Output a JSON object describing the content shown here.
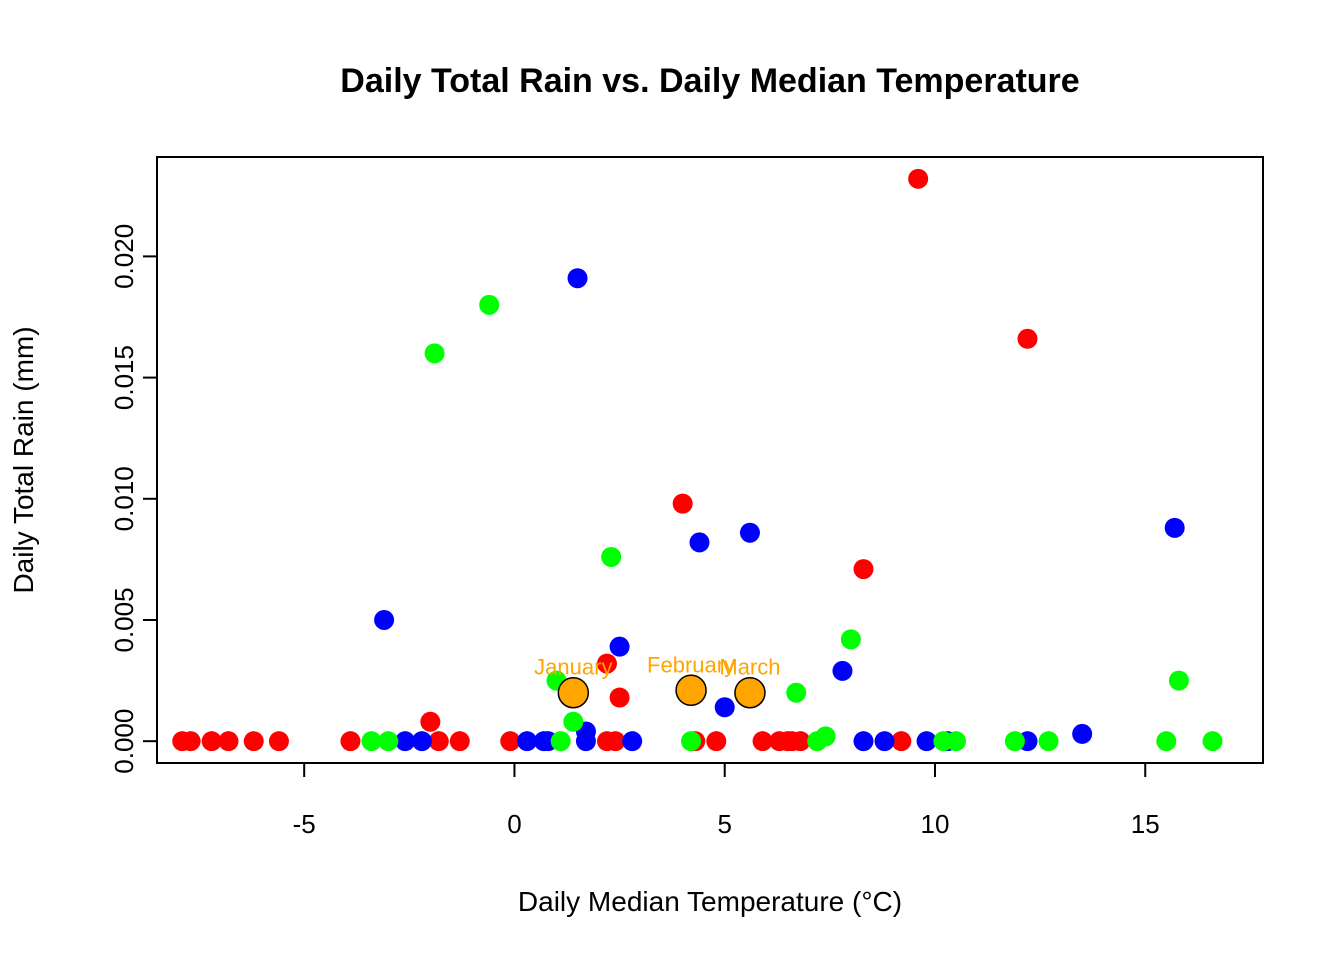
{
  "chart_data": {
    "type": "scatter",
    "title": "Daily Total Rain vs. Daily Median Temperature",
    "xlabel": "Daily Median Temperature (°C)",
    "ylabel": "Daily Total Rain (mm)",
    "xlim": [
      -8.5,
      17.8
    ],
    "ylim": [
      -0.0009,
      0.0241
    ],
    "x_ticks": [
      {
        "value": -5,
        "label": "-5"
      },
      {
        "value": 0,
        "label": "0"
      },
      {
        "value": 5,
        "label": "5"
      },
      {
        "value": 10,
        "label": "10"
      },
      {
        "value": 15,
        "label": "15"
      }
    ],
    "y_ticks": [
      {
        "value": 0.0,
        "label": "0.000"
      },
      {
        "value": 0.005,
        "label": "0.005"
      },
      {
        "value": 0.01,
        "label": "0.010"
      },
      {
        "value": 0.015,
        "label": "0.015"
      },
      {
        "value": 0.02,
        "label": "0.020"
      }
    ],
    "grid": false,
    "series": [
      {
        "color": "#ff0000",
        "points": [
          {
            "x": -7.9,
            "y": 0.0
          },
          {
            "x": -7.7,
            "y": 0.0
          },
          {
            "x": -7.2,
            "y": 0.0
          },
          {
            "x": -6.8,
            "y": 0.0
          },
          {
            "x": -6.2,
            "y": 0.0
          },
          {
            "x": -5.6,
            "y": 0.0
          },
          {
            "x": -3.9,
            "y": 0.0
          },
          {
            "x": -2.0,
            "y": 0.0008
          },
          {
            "x": -1.8,
            "y": 0.0
          },
          {
            "x": -1.3,
            "y": 0.0
          },
          {
            "x": -0.1,
            "y": 0.0
          },
          {
            "x": 2.2,
            "y": 0.0032
          },
          {
            "x": 2.2,
            "y": 0.0
          },
          {
            "x": 2.4,
            "y": 0.0
          },
          {
            "x": 2.5,
            "y": 0.0018
          },
          {
            "x": 4.0,
            "y": 0.0098
          },
          {
            "x": 4.3,
            "y": 0.0
          },
          {
            "x": 4.8,
            "y": 0.0
          },
          {
            "x": 5.9,
            "y": 0.0
          },
          {
            "x": 6.3,
            "y": 0.0
          },
          {
            "x": 6.5,
            "y": 0.0
          },
          {
            "x": 6.6,
            "y": 0.0
          },
          {
            "x": 6.8,
            "y": 0.0
          },
          {
            "x": 8.3,
            "y": 0.0071
          },
          {
            "x": 9.2,
            "y": 0.0
          },
          {
            "x": 9.6,
            "y": 0.0232
          },
          {
            "x": 12.2,
            "y": 0.0166
          }
        ]
      },
      {
        "color": "#0000ff",
        "points": [
          {
            "x": -3.1,
            "y": 0.005
          },
          {
            "x": -2.6,
            "y": 0.0
          },
          {
            "x": -2.2,
            "y": 0.0
          },
          {
            "x": 0.3,
            "y": 0.0
          },
          {
            "x": 0.7,
            "y": 0.0
          },
          {
            "x": 0.8,
            "y": 0.0
          },
          {
            "x": 1.5,
            "y": 0.0191
          },
          {
            "x": 1.7,
            "y": 0.0004
          },
          {
            "x": 1.7,
            "y": 0.0
          },
          {
            "x": 2.5,
            "y": 0.0039
          },
          {
            "x": 2.8,
            "y": 0.0
          },
          {
            "x": 4.4,
            "y": 0.0082
          },
          {
            "x": 5.0,
            "y": 0.0014
          },
          {
            "x": 5.6,
            "y": 0.0086
          },
          {
            "x": 7.8,
            "y": 0.0029
          },
          {
            "x": 8.3,
            "y": 0.0
          },
          {
            "x": 8.8,
            "y": 0.0
          },
          {
            "x": 9.8,
            "y": 0.0
          },
          {
            "x": 10.3,
            "y": 0.0
          },
          {
            "x": 12.2,
            "y": 0.0
          },
          {
            "x": 13.5,
            "y": 0.0003
          },
          {
            "x": 15.7,
            "y": 0.0088
          }
        ]
      },
      {
        "color": "#00ff00",
        "points": [
          {
            "x": -3.4,
            "y": 0.0
          },
          {
            "x": -3.0,
            "y": 0.0
          },
          {
            "x": -1.9,
            "y": 0.016
          },
          {
            "x": -0.6,
            "y": 0.018
          },
          {
            "x": 1.0,
            "y": 0.0025
          },
          {
            "x": 1.1,
            "y": 0.0
          },
          {
            "x": 1.4,
            "y": 0.0008
          },
          {
            "x": 2.3,
            "y": 0.0076
          },
          {
            "x": 4.2,
            "y": 0.0
          },
          {
            "x": 6.7,
            "y": 0.002
          },
          {
            "x": 7.2,
            "y": 0.0
          },
          {
            "x": 7.4,
            "y": 0.0002
          },
          {
            "x": 8.0,
            "y": 0.0042
          },
          {
            "x": 10.2,
            "y": 0.0
          },
          {
            "x": 10.5,
            "y": 0.0
          },
          {
            "x": 11.9,
            "y": 0.0
          },
          {
            "x": 12.7,
            "y": 0.0
          },
          {
            "x": 15.5,
            "y": 0.0
          },
          {
            "x": 15.8,
            "y": 0.0025
          },
          {
            "x": 16.6,
            "y": 0.0
          }
        ]
      }
    ],
    "monthly_means": {
      "color": "#ffa500",
      "points": [
        {
          "x": 1.4,
          "y": 0.002,
          "label": "January"
        },
        {
          "x": 4.2,
          "y": 0.0021,
          "label": "February"
        },
        {
          "x": 5.6,
          "y": 0.002,
          "label": "March"
        }
      ]
    }
  }
}
